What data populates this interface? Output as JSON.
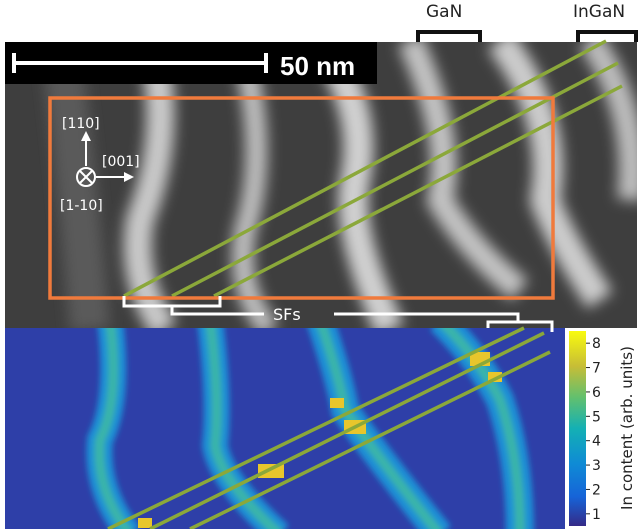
{
  "labels": {
    "gan": "GaN",
    "ingan": "InGaN",
    "scale_bar": "50 nm",
    "dir_110": "[110]",
    "dir_001": "[001]",
    "dir_1m10": "[1-10]",
    "sfs": "SFs"
  },
  "colorbar": {
    "label": "In content (arb. units)",
    "ticks": [
      "1",
      "2",
      "3",
      "4",
      "5",
      "6",
      "7",
      "8"
    ],
    "range": [
      0.5,
      8.5
    ]
  },
  "colors": {
    "roi_box": "#f07a3c",
    "sf_lines": "#8ba83a",
    "bracket": "#ffffff",
    "map_background": "#2e3fa8"
  }
}
